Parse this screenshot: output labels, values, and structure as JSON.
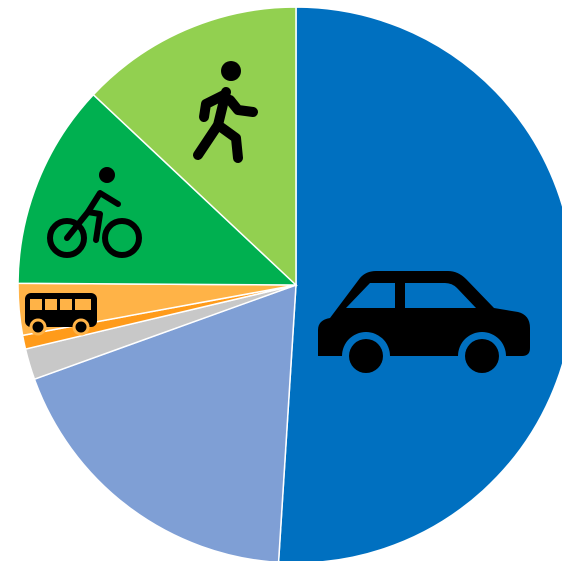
{
  "chart_data": {
    "type": "pie",
    "categories": [
      null,
      null,
      null,
      null,
      null,
      null,
      null
    ],
    "values": [
      51,
      18.5,
      1.8,
      0.8,
      3,
      11.9,
      13
    ],
    "colors": [
      "#0070c0",
      "#7f9fd5",
      "#c8c8c8",
      "#ff9b1a",
      "#ffb347",
      "#00b050",
      "#92d050"
    ]
  }
}
